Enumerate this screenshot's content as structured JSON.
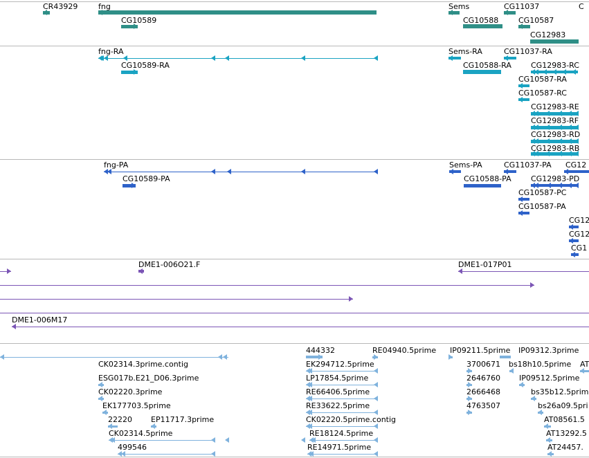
{
  "colors": {
    "gene": "#2f8f87",
    "transcript": "#1aa3c2",
    "protein": "#2e62c9",
    "clone": "#7b55b5",
    "est": "#7fb2dd",
    "divider": "#b8b8b8"
  },
  "tracks": [
    {
      "id": "genes",
      "features": [
        {
          "label": "CR43929"
        },
        {
          "label": "fng"
        },
        {
          "label": "CG10589"
        },
        {
          "label": "Sems"
        },
        {
          "label": "CG11037"
        },
        {
          "label": "CG10588"
        },
        {
          "label": "CG10587"
        },
        {
          "label": "CG12983"
        }
      ]
    },
    {
      "id": "transcripts",
      "features": [
        {
          "label": "fng-RA"
        },
        {
          "label": "CG10589-RA"
        },
        {
          "label": "Sems-RA"
        },
        {
          "label": "CG11037-RA"
        },
        {
          "label": "CG10588-RA"
        },
        {
          "label": "CG12983-RC"
        },
        {
          "label": "CG10587-RA"
        },
        {
          "label": "CG10587-RC"
        },
        {
          "label": "CG12983-RE"
        },
        {
          "label": "CG12983-RF"
        },
        {
          "label": "CG12983-RD"
        },
        {
          "label": "CG12983-RB"
        }
      ]
    },
    {
      "id": "proteins",
      "features": [
        {
          "label": "fng-PA"
        },
        {
          "label": "CG10589-PA"
        },
        {
          "label": "Sems-PA"
        },
        {
          "label": "CG11037-PA"
        },
        {
          "label": "CG12"
        },
        {
          "label": "CG10588-PA"
        },
        {
          "label": "CG12983-PD"
        },
        {
          "label": "CG10587-PC"
        },
        {
          "label": "CG10587-PA"
        },
        {
          "label": "CG12"
        },
        {
          "label": "CG12"
        },
        {
          "label": "CG1"
        }
      ]
    },
    {
      "id": "clones",
      "features": [
        {
          "label": "DME1-006O21.F"
        },
        {
          "label": "DME1-017P01"
        },
        {
          "label": "DME1-006M17"
        }
      ]
    },
    {
      "id": "ests",
      "features": [
        {
          "label": "444332"
        },
        {
          "label": "RE04940.5prime"
        },
        {
          "label": "IP09211.5prime"
        },
        {
          "label": "IP09312.3prime"
        },
        {
          "label": "CK02314.3prime.contig"
        },
        {
          "label": "EK294712.5prime"
        },
        {
          "label": "3700671"
        },
        {
          "label": "bs18h10.5prime"
        },
        {
          "label": "AT"
        },
        {
          "label": "ESG017b.E21_D06.3prime"
        },
        {
          "label": "LP17854.5prime"
        },
        {
          "label": "2646760"
        },
        {
          "label": "IP09512.5prime"
        },
        {
          "label": "CK02220.3prime"
        },
        {
          "label": "RE66406.5prime"
        },
        {
          "label": "2666468"
        },
        {
          "label": "bs35b12.5prim"
        },
        {
          "label": "EK177703.5prime"
        },
        {
          "label": "RE33622.5prime"
        },
        {
          "label": "4763507"
        },
        {
          "label": "bs26a09.5pri"
        },
        {
          "label": "22220"
        },
        {
          "label": "EP11717.3prime"
        },
        {
          "label": "CK02220.5prime.contig"
        },
        {
          "label": "AT08561.5"
        },
        {
          "label": "CK02314.5prime"
        },
        {
          "label": "RE18124.5prime"
        },
        {
          "label": "AT13292.5"
        },
        {
          "label": "499546"
        },
        {
          "label": "RE14971.5prime"
        },
        {
          "label": "AT24457."
        }
      ]
    }
  ]
}
